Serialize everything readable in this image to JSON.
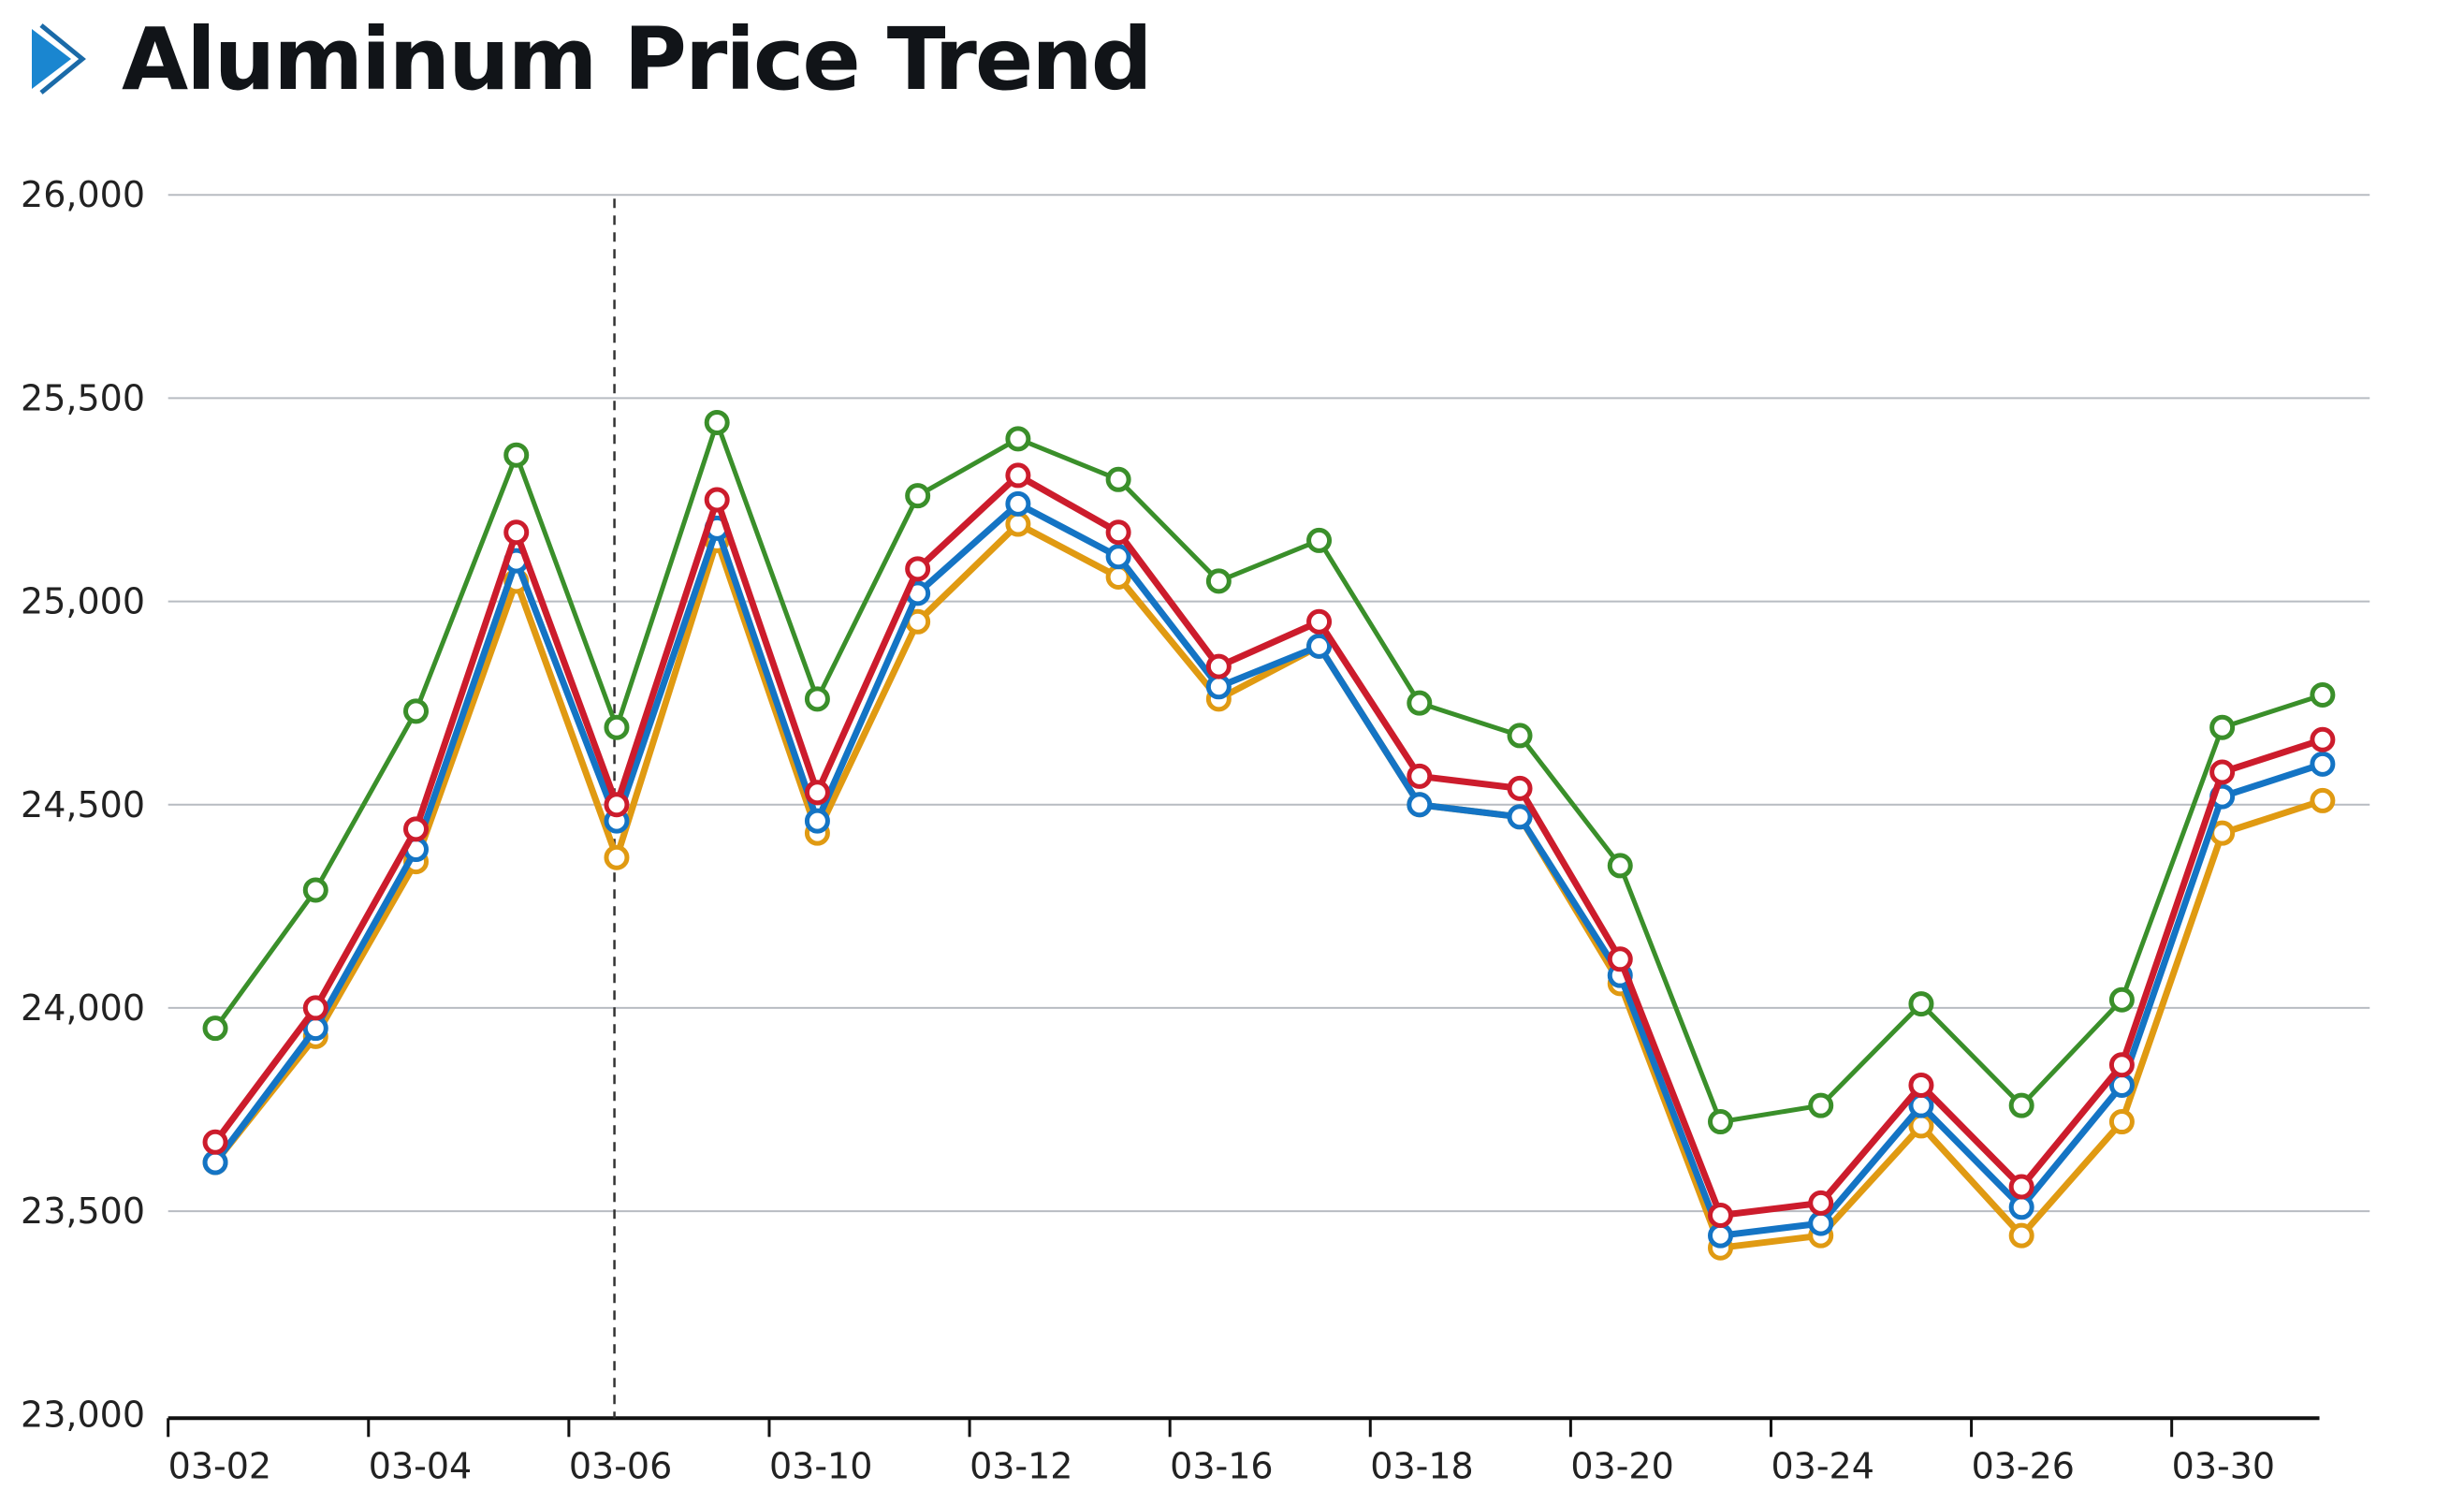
{
  "header": {
    "title": "Aluminum Price Trend",
    "icon": "play-arrow-icon",
    "icon_color": "#1a86d0"
  },
  "chart_data": {
    "type": "line",
    "title": "Aluminum Price Trend",
    "xlabel": "",
    "ylabel": "",
    "ylim": [
      23000,
      26000
    ],
    "yticks": [
      23000,
      23500,
      24000,
      24500,
      25000,
      25500,
      26000
    ],
    "ytick_labels": [
      "23,000",
      "23,500",
      "24,000",
      "24,500",
      "25,000",
      "25,500",
      "26,000"
    ],
    "xtick_labels": [
      "03-02",
      "03-04",
      "03-06",
      "03-10",
      "03-12",
      "03-16",
      "03-18",
      "03-20",
      "03-24",
      "03-26",
      "03-30"
    ],
    "x": [
      "p1",
      "p2",
      "p3",
      "p4",
      "p5",
      "p6",
      "p7",
      "p8",
      "p9",
      "p10",
      "p11",
      "p12",
      "p13",
      "p14",
      "p15",
      "p16",
      "p17",
      "p18",
      "p19",
      "p20",
      "p21",
      "p22"
    ],
    "grid": true,
    "legend": "none",
    "annotations": [
      {
        "type": "vertical-dashed-line",
        "at": "03-06"
      }
    ],
    "series": [
      {
        "name": "green",
        "color": "#3a8f2a",
        "values": [
          23950,
          24290,
          24730,
          25360,
          24690,
          25440,
          24760,
          25260,
          25400,
          25300,
          25050,
          25150,
          24750,
          24670,
          24350,
          23720,
          23760,
          24010,
          23760,
          24020,
          24690,
          24770
        ]
      },
      {
        "name": "red",
        "color": "#cc1c2c",
        "values": [
          23670,
          24000,
          24440,
          25170,
          24500,
          25250,
          24530,
          25080,
          25310,
          25170,
          24840,
          24950,
          24570,
          24540,
          24120,
          23490,
          23520,
          23810,
          23560,
          23860,
          24580,
          24660
        ]
      },
      {
        "name": "blue",
        "color": "#1474c4",
        "values": [
          23620,
          23950,
          24390,
          25100,
          24460,
          25180,
          24460,
          25020,
          25240,
          25110,
          24790,
          24890,
          24500,
          24470,
          24080,
          23440,
          23470,
          23760,
          23510,
          23810,
          24520,
          24600
        ]
      },
      {
        "name": "orange",
        "color": "#e09a12",
        "values": [
          23620,
          23930,
          24360,
          25050,
          24370,
          25150,
          24430,
          24950,
          25190,
          25060,
          24760,
          24890,
          24500,
          24470,
          24060,
          23410,
          23440,
          23710,
          23440,
          23720,
          24430,
          24510
        ]
      }
    ]
  }
}
